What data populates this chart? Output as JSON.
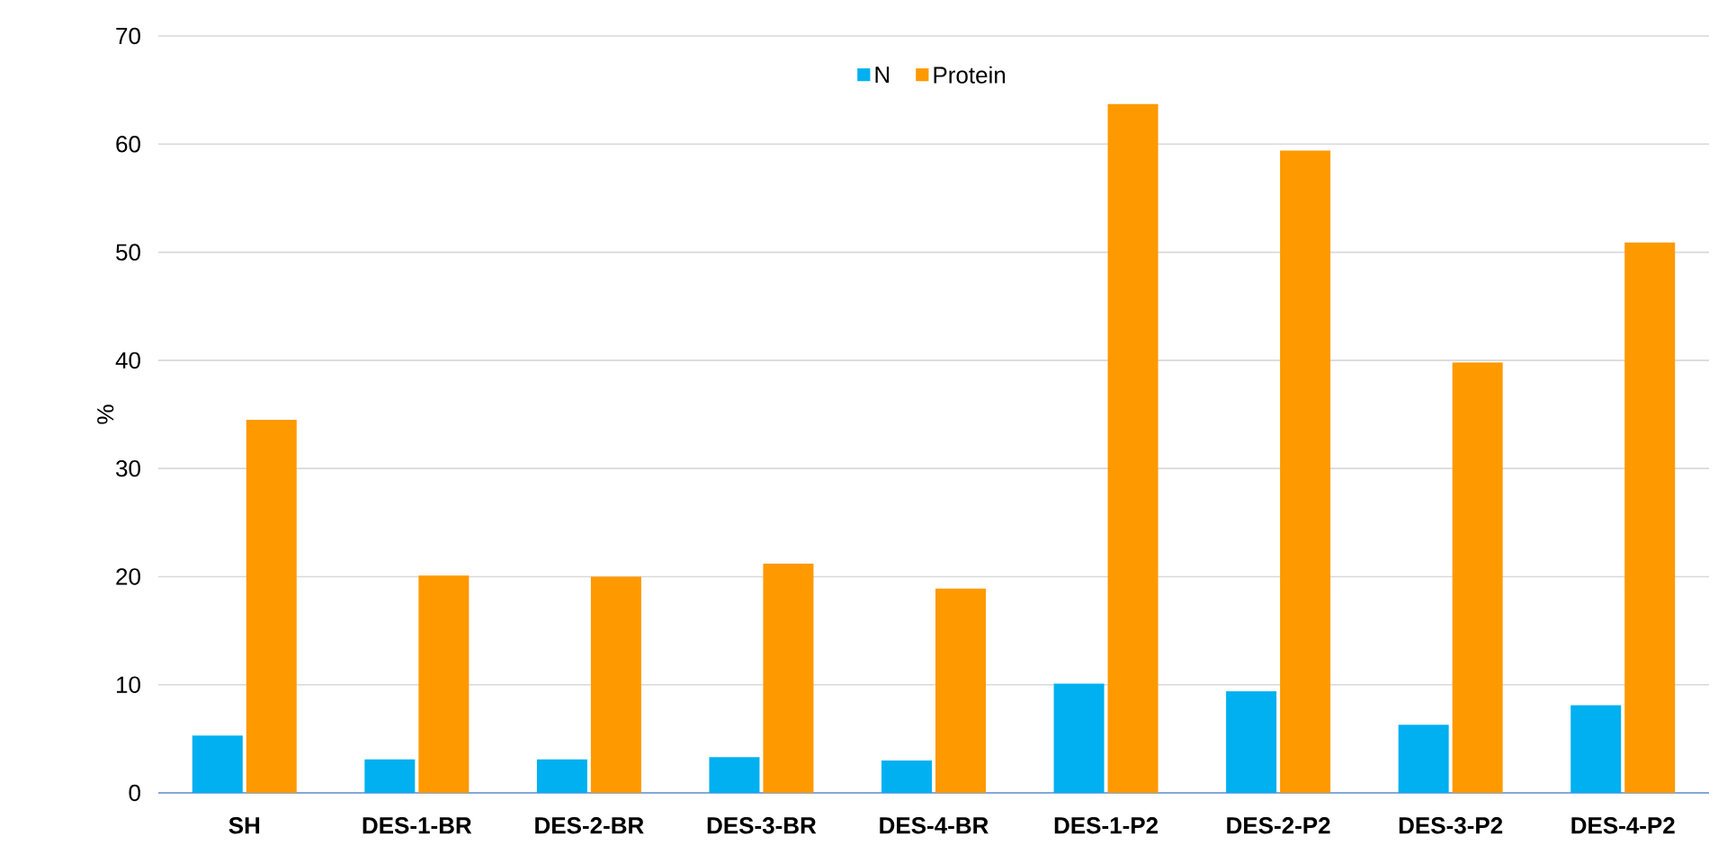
{
  "chart_data": {
    "type": "bar",
    "ylabel": "%",
    "categories": [
      "SH",
      "DES-1-BR",
      "DES-2-BR",
      "DES-3-BR",
      "DES-4-BR",
      "DES-1-P2",
      "DES-2-P2",
      "DES-3-P2",
      "DES-4-P2"
    ],
    "series": [
      {
        "name": "N",
        "color": "#00b0f0",
        "values": [
          5.3,
          3.1,
          3.1,
          3.3,
          3.0,
          10.1,
          9.4,
          6.3,
          8.1
        ]
      },
      {
        "name": "Protein",
        "color": "#ff9900",
        "values": [
          34.5,
          20.1,
          20.0,
          21.2,
          18.9,
          63.7,
          59.4,
          39.8,
          50.9
        ]
      }
    ],
    "ylim": [
      0,
      70
    ],
    "yticks": [
      0,
      10,
      20,
      30,
      40,
      50,
      60,
      70
    ],
    "grid": "y",
    "legend": "top"
  }
}
